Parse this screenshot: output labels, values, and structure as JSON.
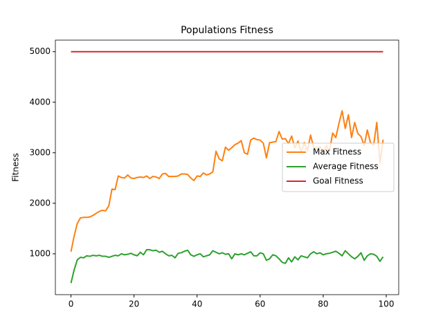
{
  "chart_data": {
    "type": "line",
    "title": "Populations Fitness",
    "ylabel": "Fitness",
    "x": [
      0,
      1,
      2,
      3,
      4,
      5,
      6,
      7,
      8,
      9,
      10,
      11,
      12,
      13,
      14,
      15,
      16,
      17,
      18,
      19,
      20,
      21,
      22,
      23,
      24,
      25,
      26,
      27,
      28,
      29,
      30,
      31,
      32,
      33,
      34,
      35,
      36,
      37,
      38,
      39,
      40,
      41,
      42,
      43,
      44,
      45,
      46,
      47,
      48,
      49,
      50,
      51,
      52,
      53,
      54,
      55,
      56,
      57,
      58,
      59,
      60,
      61,
      62,
      63,
      64,
      65,
      66,
      67,
      68,
      69,
      70,
      71,
      72,
      73,
      74,
      75,
      76,
      77,
      78,
      79,
      80,
      81,
      82,
      83,
      84,
      85,
      86,
      87,
      88,
      89,
      90,
      91,
      92,
      93,
      94,
      95,
      96,
      97,
      98,
      99
    ],
    "series": [
      {
        "name": "Max Fitness",
        "color": "#ff7f0e",
        "values": [
          1040,
          1350,
          1600,
          1710,
          1720,
          1720,
          1730,
          1760,
          1800,
          1840,
          1860,
          1850,
          1950,
          2280,
          2270,
          2540,
          2510,
          2500,
          2560,
          2500,
          2490,
          2510,
          2520,
          2510,
          2540,
          2490,
          2530,
          2520,
          2490,
          2580,
          2590,
          2530,
          2530,
          2530,
          2540,
          2580,
          2580,
          2570,
          2500,
          2450,
          2540,
          2530,
          2600,
          2560,
          2580,
          2620,
          3030,
          2880,
          2840,
          3110,
          3050,
          3100,
          3160,
          3190,
          3240,
          3000,
          2970,
          3250,
          3290,
          3260,
          3250,
          3190,
          2900,
          3200,
          3210,
          3220,
          3420,
          3270,
          3280,
          3180,
          3330,
          3100,
          3230,
          3010,
          3200,
          3040,
          3350,
          3100,
          3100,
          3120,
          3010,
          3140,
          3030,
          3390,
          3300,
          3580,
          3830,
          3480,
          3750,
          3300,
          3600,
          3380,
          3320,
          3140,
          3450,
          3200,
          3150,
          3600,
          2800,
          3260
        ]
      },
      {
        "name": "Average Fitness",
        "color": "#2ca02c",
        "values": [
          420,
          680,
          880,
          930,
          920,
          960,
          950,
          970,
          960,
          970,
          950,
          950,
          930,
          950,
          970,
          960,
          1000,
          980,
          990,
          1010,
          980,
          960,
          1030,
          980,
          1080,
          1080,
          1060,
          1070,
          1030,
          1050,
          1000,
          960,
          970,
          920,
          1010,
          1020,
          1050,
          1070,
          980,
          950,
          980,
          1000,
          940,
          960,
          980,
          1060,
          1030,
          1000,
          1020,
          990,
          1000,
          900,
          1000,
          980,
          1000,
          980,
          1010,
          1040,
          960,
          960,
          1020,
          1000,
          870,
          900,
          980,
          960,
          900,
          830,
          810,
          920,
          840,
          940,
          880,
          960,
          940,
          920,
          1000,
          1040,
          1000,
          1020,
          980,
          1000,
          1010,
          1030,
          1050,
          1010,
          960,
          1060,
          1000,
          940,
          900,
          950,
          1020,
          870,
          960,
          1000,
          990,
          950,
          850,
          940
        ]
      },
      {
        "name": "Goal Fitness",
        "color": "#d62728",
        "values": [
          5000,
          5000,
          5000,
          5000,
          5000,
          5000,
          5000,
          5000,
          5000,
          5000,
          5000,
          5000,
          5000,
          5000,
          5000,
          5000,
          5000,
          5000,
          5000,
          5000,
          5000,
          5000,
          5000,
          5000,
          5000,
          5000,
          5000,
          5000,
          5000,
          5000,
          5000,
          5000,
          5000,
          5000,
          5000,
          5000,
          5000,
          5000,
          5000,
          5000,
          5000,
          5000,
          5000,
          5000,
          5000,
          5000,
          5000,
          5000,
          5000,
          5000,
          5000,
          5000,
          5000,
          5000,
          5000,
          5000,
          5000,
          5000,
          5000,
          5000,
          5000,
          5000,
          5000,
          5000,
          5000,
          5000,
          5000,
          5000,
          5000,
          5000,
          5000,
          5000,
          5000,
          5000,
          5000,
          5000,
          5000,
          5000,
          5000,
          5000,
          5000,
          5000,
          5000,
          5000,
          5000,
          5000,
          5000,
          5000,
          5000,
          5000,
          5000,
          5000,
          5000,
          5000,
          5000,
          5000,
          5000,
          5000,
          5000,
          5000
        ]
      }
    ],
    "xlim": [
      -4.95,
      103.95
    ],
    "xticks": [
      0,
      20,
      40,
      60,
      80,
      100
    ],
    "ylim": [
      191,
      5229
    ],
    "yticks": [
      1000,
      2000,
      3000,
      4000,
      5000
    ],
    "legend": "center right"
  }
}
